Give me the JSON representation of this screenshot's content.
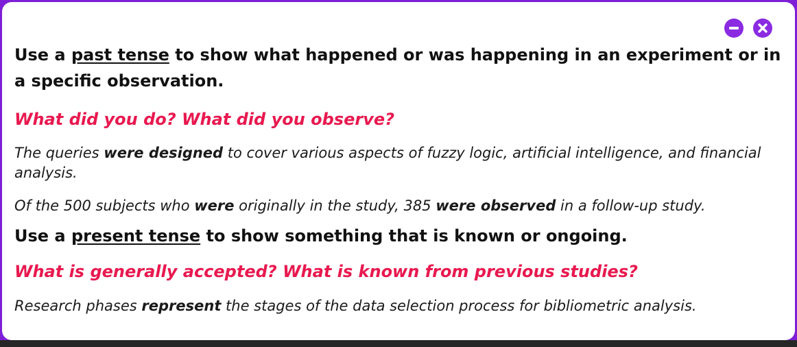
{
  "window_controls": {
    "minimize_icon": "minus-circle-icon",
    "close_icon": "x-circle-icon",
    "accent_color": "#8a2be2"
  },
  "past": {
    "heading_pre": "Use a ",
    "heading_term": "past tense",
    "heading_post": " to show what happened or was happening in an experiment  or in a specific observation.",
    "question": "What did you do?  What did you observe?",
    "example1": {
      "t1": "The queries ",
      "b1": "were designed",
      "t2": " to cover various aspects of fuzzy logic, artificial intelligence, and financial analysis."
    },
    "example2": {
      "t1": "Of the 500 subjects who ",
      "b1": "were",
      "t2": " originally in the study, 385 ",
      "b2": "were observed",
      "t3": " in a follow-up study."
    }
  },
  "present": {
    "heading_pre": "Use a ",
    "heading_term": "present tense",
    "heading_post": " to show something that is known or ongoing.",
    "question": "What is generally accepted?  What is known from previous studies?",
    "example1": {
      "t1": "Research phases ",
      "b1": "represent",
      "t2": " the stages of the data selection process for bibliometric analysis."
    }
  },
  "colors": {
    "question_color": "#e8194f",
    "frame_color": "#7d1fd6"
  }
}
